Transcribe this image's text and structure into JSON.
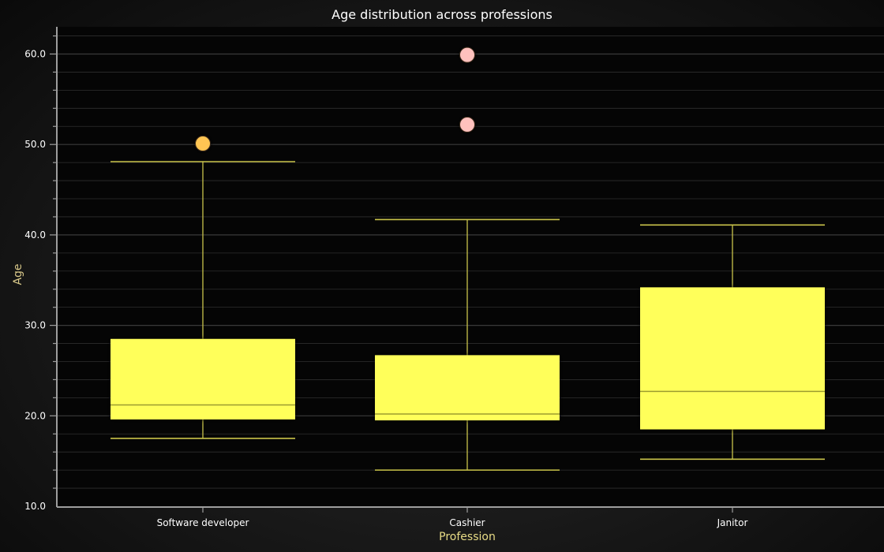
{
  "chart_data": {
    "type": "box",
    "title": "Age distribution across professions",
    "xlabel": "Profession",
    "ylabel": "Age",
    "ylim": [
      10,
      63
    ],
    "yticks": [
      "10.0",
      "20.0",
      "30.0",
      "40.0",
      "50.0",
      "60.0"
    ],
    "grid": true,
    "categories": [
      "Software developer",
      "Cashier",
      "Janitor"
    ],
    "boxes": [
      {
        "category": "Software developer",
        "whisker_low": 17.5,
        "q1": 19.6,
        "median": 21.2,
        "q3": 28.5,
        "whisker_high": 48.1,
        "outliers": [
          50.1
        ],
        "outlier_color": "#ffc552"
      },
      {
        "category": "Cashier",
        "whisker_low": 14.0,
        "q1": 19.5,
        "median": 20.2,
        "q3": 26.7,
        "whisker_high": 41.7,
        "outliers": [
          59.9,
          52.2
        ],
        "outlier_color": "#ffc1bd"
      },
      {
        "category": "Janitor",
        "whisker_low": 15.2,
        "q1": 18.5,
        "median": 22.7,
        "q3": 34.2,
        "whisker_high": 41.1,
        "outliers": [],
        "outlier_color": "#ffc1bd"
      }
    ],
    "colors": {
      "box_fill": "#ffff5a",
      "box_line": "#9c9c30",
      "whisker": "#c9c34a",
      "axis": "#9e9e9e",
      "grid": "#2e2e2e"
    }
  }
}
